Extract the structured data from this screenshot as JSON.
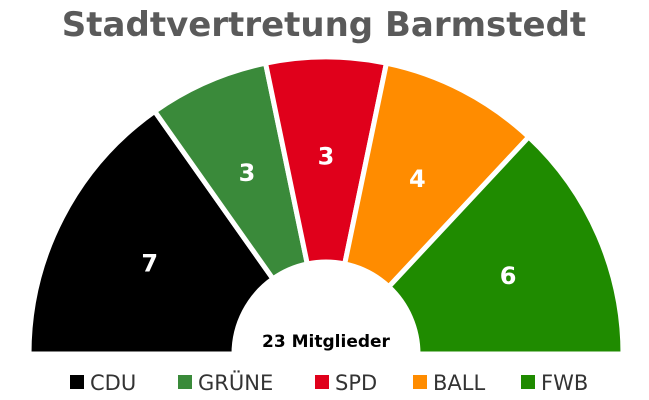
{
  "chart_data": {
    "type": "pie",
    "subtype": "parliament-semicircle",
    "title": "Stadtvertretung Barmstedt",
    "total_label": "23 Mitglieder",
    "legend_position": "bottom",
    "categories": [
      "CDU",
      "GRÜNE",
      "SPD",
      "BALL",
      "FWB"
    ],
    "values": [
      7,
      3,
      3,
      4,
      6
    ],
    "colors": [
      "#000000",
      "#3a8a3a",
      "#e0001b",
      "#ff8c00",
      "#1f8b00"
    ]
  }
}
